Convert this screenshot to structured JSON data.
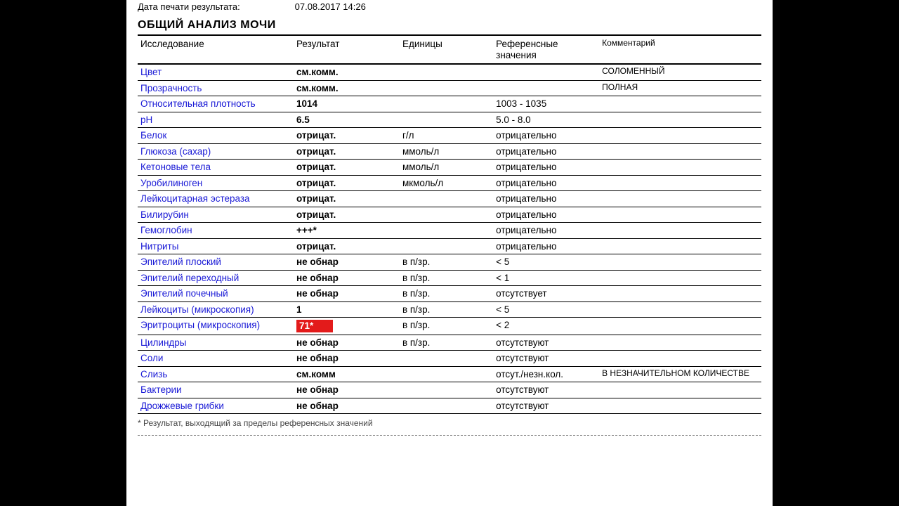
{
  "meta": {
    "print_label": "Дата печати результата:",
    "print_value": "07.08.2017 14:26"
  },
  "section_title": "ОБЩИЙ АНАЛИЗ МОЧИ",
  "columns": {
    "test": "Исследование",
    "result": "Результат",
    "units": "Единицы",
    "ref": "Референсные значения",
    "comment": "Комментарий"
  },
  "rows": [
    {
      "test": "Цвет",
      "result": "см.комм.",
      "units": "",
      "ref": "",
      "comment": "СОЛОМЕННЫЙ"
    },
    {
      "test": "Прозрачность",
      "result": "см.комм.",
      "units": "",
      "ref": "",
      "comment": "ПОЛНАЯ"
    },
    {
      "test": "Относительная плотность",
      "result": "1014",
      "units": "",
      "ref": "1003 - 1035",
      "comment": ""
    },
    {
      "test": "pH",
      "result": "6.5",
      "units": "",
      "ref": "5.0 - 8.0",
      "comment": ""
    },
    {
      "test": "Белок",
      "result": "отрицат.",
      "units": "г/л",
      "ref": "отрицательно",
      "comment": ""
    },
    {
      "test": "Глюкоза (сахар)",
      "result": "отрицат.",
      "units": "ммоль/л",
      "ref": "отрицательно",
      "comment": ""
    },
    {
      "test": "Кетоновые тела",
      "result": "отрицат.",
      "units": "ммоль/л",
      "ref": "отрицательно",
      "comment": ""
    },
    {
      "test": "Уробилиноген",
      "result": "отрицат.",
      "units": "мкмоль/л",
      "ref": "отрицательно",
      "comment": ""
    },
    {
      "test": "Лейкоцитарная эстераза",
      "result": "отрицат.",
      "units": "",
      "ref": "отрицательно",
      "comment": ""
    },
    {
      "test": "Билирубин",
      "result": "отрицат.",
      "units": "",
      "ref": "отрицательно",
      "comment": ""
    },
    {
      "test": "Гемоглобин",
      "result": "+++*",
      "units": "",
      "ref": "отрицательно",
      "comment": ""
    },
    {
      "test": "Нитриты",
      "result": "отрицат.",
      "units": "",
      "ref": "отрицательно",
      "comment": ""
    },
    {
      "test": "Эпителий плоский",
      "result": "не обнар",
      "units": "в п/зр.",
      "ref": "< 5",
      "comment": ""
    },
    {
      "test": "Эпителий переходный",
      "result": "не обнар",
      "units": "в п/зр.",
      "ref": "< 1",
      "comment": ""
    },
    {
      "test": "Эпителий почечный",
      "result": "не обнар",
      "units": "в п/зр.",
      "ref": "отсутствует",
      "comment": ""
    },
    {
      "test": "Лейкоциты (микроскопия)",
      "result": "1",
      "units": "в п/зр.",
      "ref": "< 5",
      "comment": ""
    },
    {
      "test": "Эритроциты (микроскопия)",
      "result": "71*",
      "units": "в п/зр.",
      "ref": "< 2",
      "comment": "",
      "highlight": true
    },
    {
      "test": "Цилиндры",
      "result": "не обнар",
      "units": "в п/зр.",
      "ref": "отсутствуют",
      "comment": ""
    },
    {
      "test": "Соли",
      "result": "не обнар",
      "units": "",
      "ref": "отсутствуют",
      "comment": ""
    },
    {
      "test": "Слизь",
      "result": "см.комм",
      "units": "",
      "ref": "отсут./незн.кол.",
      "comment": "В НЕЗНАЧИТЕЛЬНОМ КОЛИЧЕСТВЕ"
    },
    {
      "test": "Бактерии",
      "result": "не обнар",
      "units": "",
      "ref": "отсутствуют",
      "comment": ""
    },
    {
      "test": "Дрожжевые грибки",
      "result": "не обнар",
      "units": "",
      "ref": "отсутствуют",
      "comment": ""
    }
  ],
  "footnote": "* Результат, выходящий за пределы референсных значений",
  "colors": {
    "link": "#1a1ad6",
    "highlight_bg": "#e31b1b",
    "highlight_fg": "#ffffff",
    "page_bg": "#ffffff",
    "outer_bg": "#000000"
  }
}
